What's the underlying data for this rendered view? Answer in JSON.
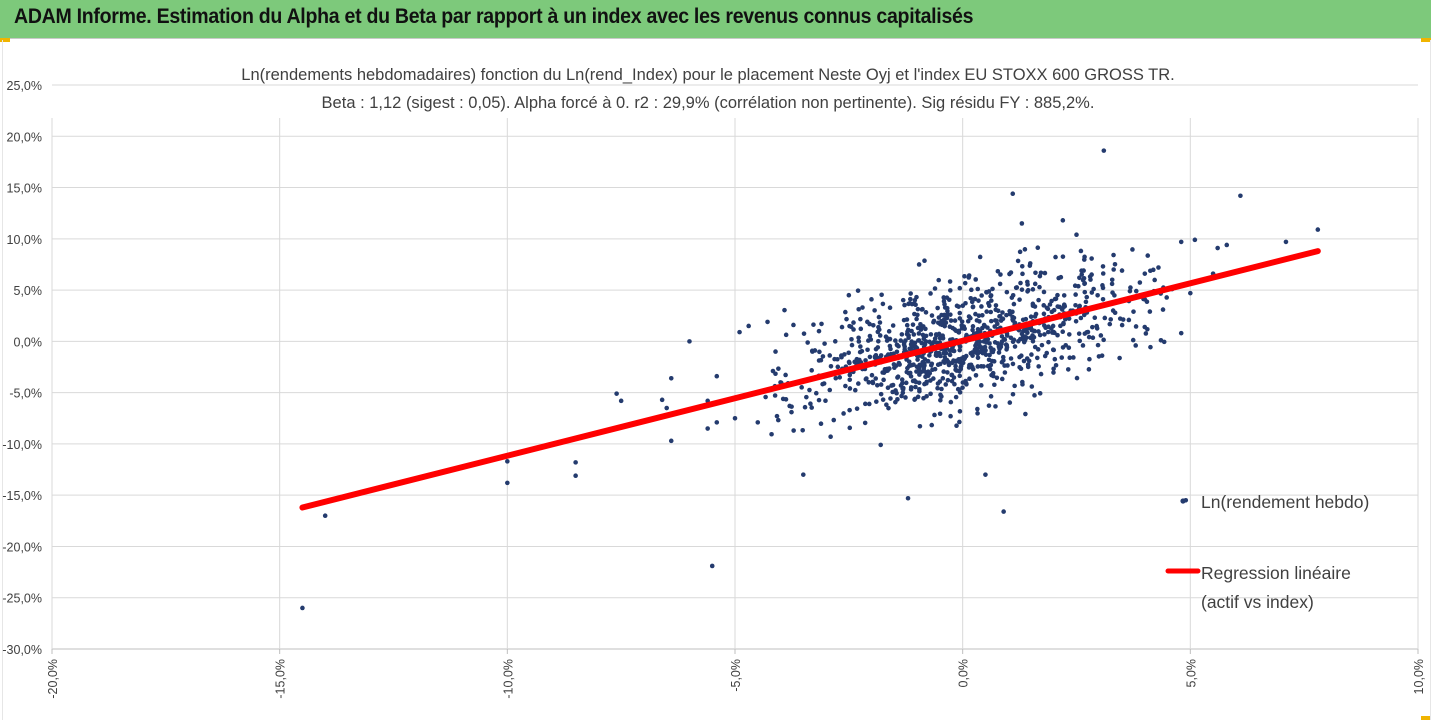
{
  "header": {
    "title": "ADAM Informe. Estimation du Alpha et du Beta par rapport à un index avec les revenus connus capitalisés"
  },
  "colors": {
    "header_bg": "#7dc97b",
    "points": "#243b6e",
    "regression": "#ff0000",
    "grid": "#d9d9d9"
  },
  "chart_data": {
    "type": "scatter",
    "title_line1": "Ln(rendements hebdomadaires) fonction du Ln(rend_Index) pour le placement Neste Oyj et l'index EU STOXX 600 GROSS TR.",
    "title_line2": "Beta : 1,12 (sigest : 0,05).  Alpha forcé à 0.  r2 : 29,9% (corrélation non pertinente). Sig résidu FY : 885,2%.",
    "xlim": [
      -0.2,
      0.1
    ],
    "ylim": [
      -0.3,
      0.25
    ],
    "x_ticks": [
      "-20,0%",
      "-15,0%",
      "-10,0%",
      "-5,0%",
      "0,0%",
      "5,0%",
      "10,0%"
    ],
    "y_ticks": [
      "25,0%",
      "20,0%",
      "15,0%",
      "10,0%",
      "5,0%",
      "0,0%",
      "-5,0%",
      "-10,0%",
      "-15,0%",
      "-20,0%",
      "-25,0%",
      "-30,0%"
    ],
    "grid": true,
    "legend_position": "right",
    "series": [
      {
        "name": "Ln(rendement hebdo)",
        "kind": "scatter",
        "cluster_note": "dense cloud of ~1000 points around origin (sd x≈0.018, sd y≈0.035)",
        "points": [
          [
            -0.145,
            -0.26
          ],
          [
            -0.14,
            -0.17
          ],
          [
            -0.1,
            -0.138
          ],
          [
            -0.1,
            -0.117
          ],
          [
            -0.085,
            -0.118
          ],
          [
            -0.085,
            -0.131
          ],
          [
            -0.076,
            -0.051
          ],
          [
            -0.075,
            -0.058
          ],
          [
            -0.066,
            -0.057
          ],
          [
            -0.065,
            -0.065
          ],
          [
            -0.064,
            -0.036
          ],
          [
            -0.064,
            -0.097
          ],
          [
            -0.06,
            0.0
          ],
          [
            -0.056,
            -0.058
          ],
          [
            -0.056,
            -0.085
          ],
          [
            -0.055,
            -0.219
          ],
          [
            -0.054,
            -0.034
          ],
          [
            -0.054,
            -0.079
          ],
          [
            -0.05,
            -0.075
          ],
          [
            -0.049,
            0.009
          ],
          [
            -0.047,
            0.015
          ],
          [
            -0.045,
            -0.079
          ],
          [
            -0.04,
            -0.04
          ],
          [
            -0.038,
            -0.063
          ],
          [
            -0.035,
            -0.13
          ],
          [
            -0.033,
            -0.01
          ],
          [
            -0.031,
            0.017
          ],
          [
            -0.029,
            -0.093
          ],
          [
            -0.025,
            0.045
          ],
          [
            -0.022,
            0.033
          ],
          [
            -0.018,
            -0.101
          ],
          [
            -0.012,
            -0.153
          ],
          [
            0.005,
            -0.13
          ],
          [
            0.009,
            -0.166
          ],
          [
            0.011,
            0.144
          ],
          [
            0.013,
            0.115
          ],
          [
            0.022,
            0.118
          ],
          [
            0.025,
            0.104
          ],
          [
            0.031,
            0.186
          ],
          [
            0.035,
            0.069
          ],
          [
            0.04,
            0.066
          ],
          [
            0.043,
            0.072
          ],
          [
            0.046,
            0.051
          ],
          [
            0.048,
            0.008
          ],
          [
            0.048,
            0.097
          ],
          [
            0.049,
            -0.155
          ],
          [
            0.05,
            0.047
          ],
          [
            0.051,
            0.099
          ],
          [
            0.055,
            0.066
          ],
          [
            0.056,
            0.091
          ],
          [
            0.058,
            0.094
          ],
          [
            0.061,
            0.142
          ],
          [
            0.071,
            0.097
          ],
          [
            0.078,
            0.109
          ],
          [
            0.042,
            0.049
          ],
          [
            0.038,
            -0.004
          ],
          [
            0.044,
            0.031
          ],
          [
            0.04,
            0.041
          ]
        ]
      },
      {
        "name": "Regression linéaire (actif vs index)",
        "kind": "line",
        "legend_lines": [
          "Regression linéaire",
          "(actif vs index)"
        ],
        "x": [
          -0.145,
          0.078
        ],
        "y": [
          -0.162,
          0.088
        ]
      }
    ]
  }
}
